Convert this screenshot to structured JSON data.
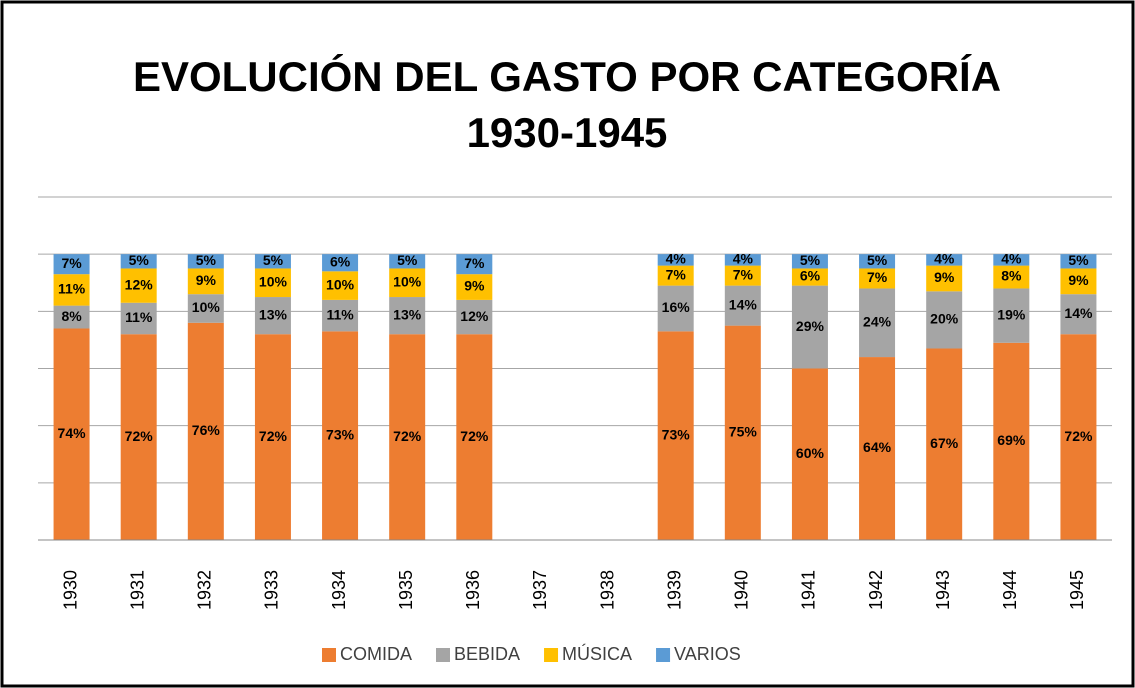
{
  "chart_data": {
    "type": "stacked_bar",
    "title": "EVOLUCIÓN DEL GASTO POR CATEGORÍA",
    "subtitle": "1930-1945",
    "categories": [
      "1930",
      "1931",
      "1932",
      "1933",
      "1934",
      "1935",
      "1936",
      "1937",
      "1938",
      "1939",
      "1940",
      "1941",
      "1942",
      "1943",
      "1944",
      "1945"
    ],
    "series": [
      {
        "name": "COMIDA",
        "color": "#ED7D31",
        "values": [
          74,
          72,
          76,
          72,
          73,
          72,
          72,
          null,
          null,
          73,
          75,
          60,
          64,
          67,
          69,
          72
        ],
        "value_labels": [
          "74%",
          "72%",
          "76%",
          "72%",
          "73%",
          "72%",
          "72%",
          null,
          null,
          "73%",
          "75%",
          "60%",
          "64%",
          "67%",
          "69%",
          "72%"
        ]
      },
      {
        "name": "BEBIDA",
        "color": "#A5A5A5",
        "values": [
          8,
          11,
          10,
          13,
          11,
          13,
          12,
          null,
          null,
          16,
          14,
          29,
          24,
          20,
          19,
          14
        ],
        "value_labels": [
          "8%",
          "11%",
          "10%",
          "13%",
          "11%",
          "13%",
          "12%",
          null,
          null,
          "16%",
          "14%",
          "29%",
          "24%",
          "20%",
          "19%",
          "14%"
        ]
      },
      {
        "name": "MÚSICA",
        "color": "#FFC000",
        "values": [
          11,
          12,
          9,
          10,
          10,
          10,
          9,
          null,
          null,
          7,
          7,
          6,
          7,
          9,
          8,
          9
        ],
        "value_labels": [
          "11%",
          "12%",
          "9%",
          "10%",
          "10%",
          "10%",
          "9%",
          null,
          null,
          "7%",
          "7%",
          "6%",
          "7%",
          "9%",
          "8%",
          "9%"
        ]
      },
      {
        "name": "VARIOS",
        "color": "#5B9BD5",
        "values": [
          7,
          5,
          5,
          5,
          6,
          5,
          7,
          null,
          null,
          4,
          4,
          5,
          5,
          4,
          4,
          5
        ],
        "value_labels": [
          "7%",
          "5%",
          "5%",
          "5%",
          "6%",
          "5%",
          "7%",
          null,
          null,
          "4%",
          "4%",
          "5%",
          "5%",
          "4%",
          "4%",
          "5%"
        ]
      }
    ],
    "ylim": [
      0,
      120
    ],
    "yticks": [
      0,
      20,
      40,
      60,
      80,
      100,
      120
    ],
    "grid": true,
    "legend": "bottom"
  }
}
